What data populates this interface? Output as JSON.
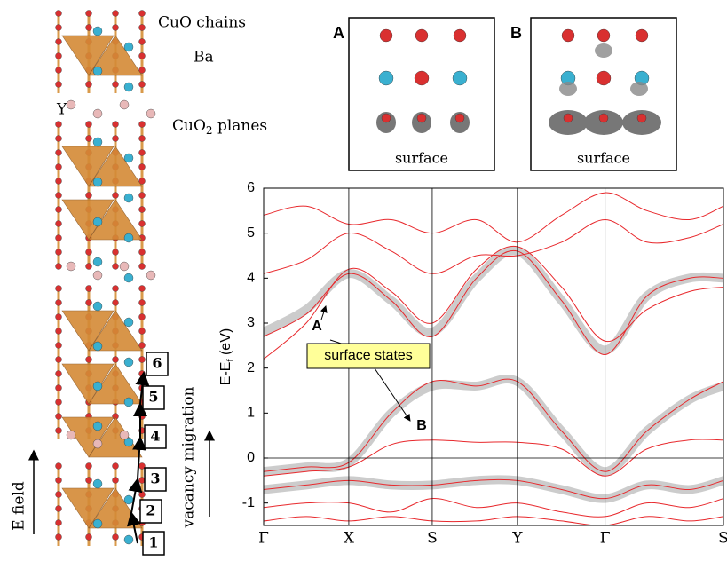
{
  "chart_data": {
    "type": "line",
    "y_label": [
      "E-E",
      "f",
      " (eV)"
    ],
    "x": [
      0,
      0.5,
      1,
      1.5,
      1.98,
      2.5,
      2.98,
      3.5,
      4.01,
      4.5,
      5.0,
      5.4
    ],
    "xlim": [
      0,
      5.4
    ],
    "xticks": [
      {
        "value": 0,
        "label": "Γ"
      },
      {
        "value": 1,
        "label": "X"
      },
      {
        "value": 1.98,
        "label": "S"
      },
      {
        "value": 2.98,
        "label": "Y"
      },
      {
        "value": 4.01,
        "label": "Γ"
      },
      {
        "value": 5.4,
        "label": "S"
      }
    ],
    "ylim": [
      -1.5,
      6
    ],
    "yticks": [
      -1,
      0,
      1,
      2,
      3,
      4,
      5,
      6
    ],
    "fermi_level": 0,
    "series": [
      {
        "color": "#cccccc",
        "width": 10,
        "values": [
          2.8,
          3.3,
          4.1,
          3.5,
          2.8,
          4.0,
          4.6,
          3.5,
          2.4,
          3.6,
          4.0,
          4.0
        ]
      },
      {
        "color": "#cccccc",
        "width": 10,
        "values": [
          -0.3,
          -0.2,
          -0.1,
          1.0,
          1.6,
          1.6,
          1.7,
          0.6,
          -0.3,
          0.6,
          1.3,
          1.6
        ]
      },
      {
        "color": "#cccccc",
        "width": 10,
        "values": [
          -0.7,
          -0.6,
          -0.5,
          -0.6,
          -0.6,
          -0.5,
          -0.5,
          -0.7,
          -0.9,
          -0.6,
          -0.7,
          -0.5
        ]
      },
      {
        "color": "#e8282c",
        "width": 1,
        "values": [
          -0.3,
          -0.2,
          -0.1,
          1.0,
          1.7,
          1.6,
          1.7,
          0.6,
          -0.3,
          0.6,
          1.3,
          1.7
        ]
      },
      {
        "color": "#e8282c",
        "width": 1,
        "values": [
          -0.4,
          -0.3,
          -0.2,
          0.3,
          0.4,
          0.35,
          0.35,
          0.2,
          -0.4,
          0.2,
          0.4,
          0.4
        ]
      },
      {
        "color": "#e8282c",
        "width": 1,
        "values": [
          2.7,
          3.2,
          4.1,
          3.5,
          2.7,
          4.0,
          4.6,
          3.5,
          2.3,
          3.6,
          4.0,
          4.0
        ]
      },
      {
        "color": "#e8282c",
        "width": 1,
        "values": [
          2.2,
          3.0,
          4.2,
          3.7,
          3.0,
          4.2,
          4.7,
          3.8,
          2.6,
          3.3,
          3.7,
          3.8
        ]
      },
      {
        "color": "#e8282c",
        "width": 1,
        "values": [
          4.1,
          4.4,
          5.0,
          4.6,
          4.1,
          4.5,
          4.5,
          4.8,
          5.3,
          4.8,
          4.9,
          5.2
        ]
      },
      {
        "color": "#e8282c",
        "width": 1,
        "values": [
          5.4,
          5.6,
          5.2,
          5.3,
          5.0,
          5.3,
          4.8,
          5.4,
          5.9,
          5.5,
          5.3,
          5.6
        ]
      },
      {
        "color": "#e8282c",
        "width": 1,
        "values": [
          -0.7,
          -0.6,
          -0.5,
          -0.6,
          -0.6,
          -0.5,
          -0.5,
          -0.7,
          -0.9,
          -0.6,
          -0.7,
          -0.5
        ]
      },
      {
        "color": "#e8282c",
        "width": 1,
        "values": [
          -1.1,
          -1.0,
          -1.0,
          -1.2,
          -0.9,
          -1.1,
          -1.0,
          -1.2,
          -1.3,
          -1.0,
          -1.1,
          -0.9
        ]
      },
      {
        "color": "#e8282c",
        "width": 1,
        "values": [
          -1.4,
          -1.3,
          -1.4,
          -1.3,
          -1.4,
          -1.4,
          -1.3,
          -1.4,
          -1.5,
          -1.3,
          -1.4,
          -1.3
        ]
      }
    ],
    "annotations": {
      "a": "A",
      "b": "B",
      "box": "surface states"
    }
  },
  "figure": {
    "cuo_chains": "CuO  chains",
    "ba": "Ba",
    "y": "Y",
    "cuo2": [
      "CuO",
      "2",
      " planes"
    ],
    "e_field": "E  field",
    "vacancy": "vacancy  migration",
    "steps": [
      "1",
      "2",
      "3",
      "4",
      "5",
      "6"
    ],
    "panel_a": "A",
    "panel_b": "B",
    "surface_a": "surface",
    "surface_b": "surface"
  }
}
